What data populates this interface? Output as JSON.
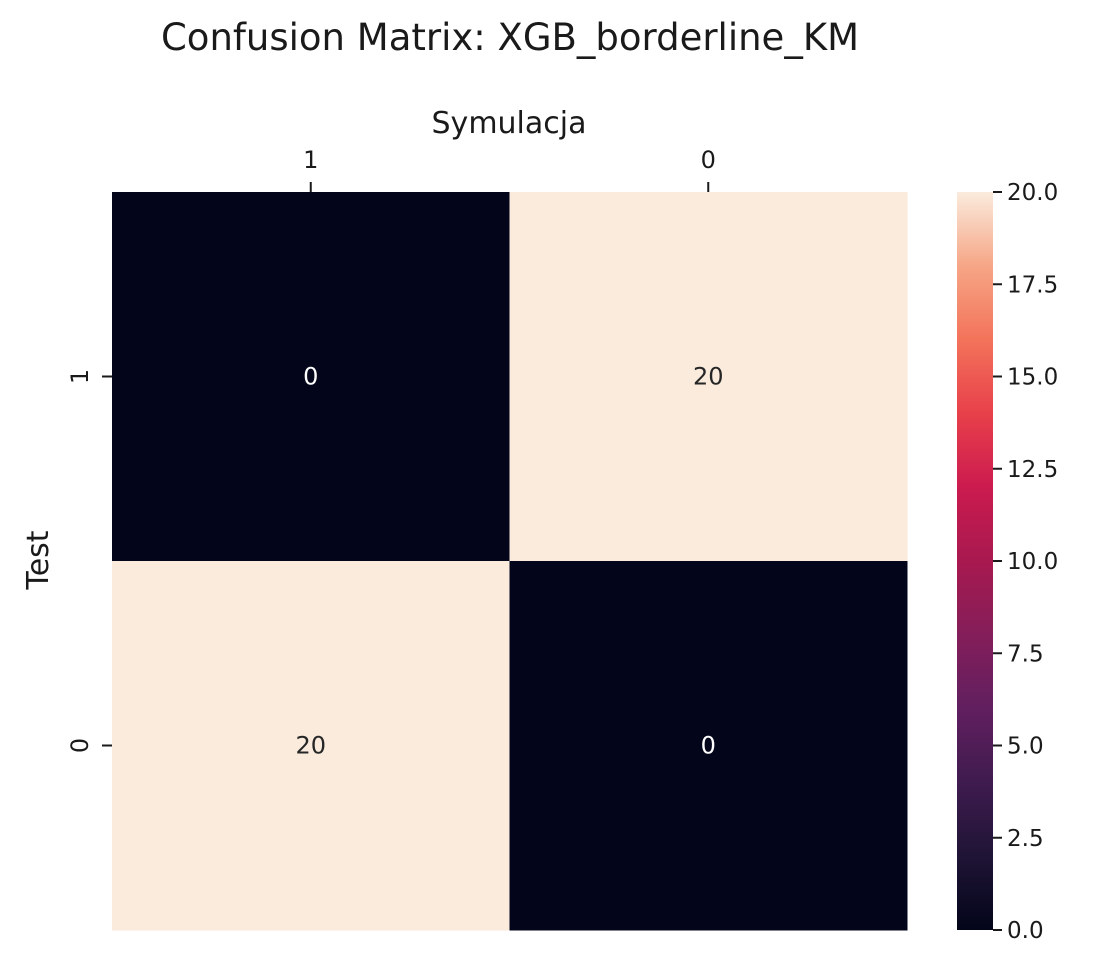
{
  "chart_data": {
    "type": "heatmap",
    "title": "Confusion Matrix: XGB_borderline_KM",
    "xlabel": "Symulacja",
    "ylabel": "Test",
    "x_categories": [
      "1",
      "0"
    ],
    "y_categories": [
      "1",
      "0"
    ],
    "values": [
      [
        0,
        20
      ],
      [
        20,
        0
      ]
    ],
    "annotations": true,
    "colormap": "rocket",
    "colorbar": {
      "range": [
        0,
        20
      ],
      "ticks": [
        0,
        2.5,
        5,
        7.5,
        10,
        12.5,
        15,
        17.5,
        20
      ],
      "tick_labels": [
        "0.0",
        "2.5",
        "5.0",
        "7.5",
        "10.0",
        "12.5",
        "15.0",
        "17.5",
        "20.0"
      ]
    },
    "x_axis_position": "top",
    "grid": false
  },
  "colors": {
    "low": "#03051a",
    "high": "#faebdd",
    "text_on_dark": "#ffffff",
    "text_on_light": "#262626",
    "axis_text": "#1a1a1a"
  }
}
